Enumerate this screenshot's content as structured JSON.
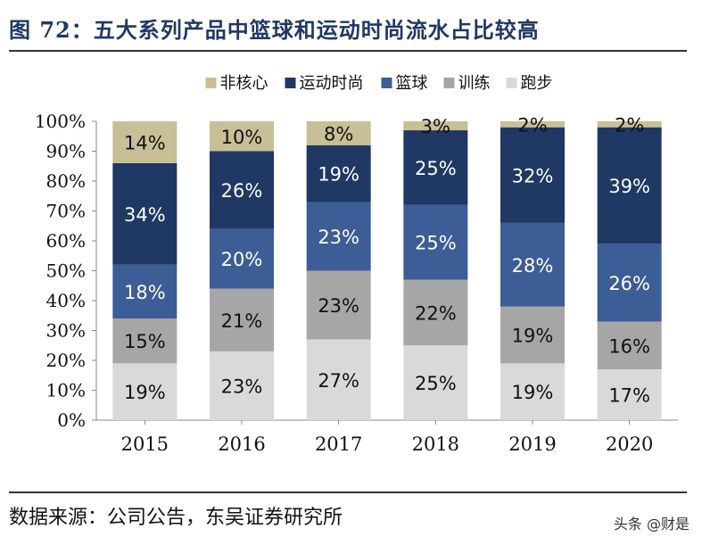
{
  "figure": {
    "title": "图 72：五大系列产品中篮球和运动时尚流水占比较高",
    "source": "数据来源：公司公告，东吴证券研究所",
    "watermark": "头条 @财是"
  },
  "chart_data": {
    "type": "bar",
    "stacked": true,
    "categories": [
      "2015",
      "2016",
      "2017",
      "2018",
      "2019",
      "2020"
    ],
    "ylim": [
      0,
      100
    ],
    "yticks": [
      "0%",
      "10%",
      "20%",
      "30%",
      "40%",
      "50%",
      "60%",
      "70%",
      "80%",
      "90%",
      "100%"
    ],
    "legend_position": "top",
    "series": [
      {
        "name": "跑步",
        "color": "#d9d9d9",
        "label_color": "#111111",
        "values": [
          19,
          23,
          27,
          25,
          19,
          17
        ],
        "labels": [
          "19%",
          "23%",
          "27%",
          "25%",
          "19%",
          "17%"
        ]
      },
      {
        "name": "训练",
        "color": "#a6a6a6",
        "label_color": "#111111",
        "values": [
          15,
          21,
          23,
          22,
          19,
          16
        ],
        "labels": [
          "15%",
          "21%",
          "23%",
          "22%",
          "19%",
          "16%"
        ]
      },
      {
        "name": "篮球",
        "color": "#3c5d96",
        "label_color": "#ffffff",
        "values": [
          18,
          20,
          23,
          25,
          28,
          26
        ],
        "labels": [
          "18%",
          "20%",
          "23%",
          "25%",
          "28%",
          "26%"
        ]
      },
      {
        "name": "运动时尚",
        "color": "#1f3864",
        "label_color": "#ffffff",
        "values": [
          34,
          26,
          19,
          25,
          32,
          39
        ],
        "labels": [
          "34%",
          "26%",
          "19%",
          "25%",
          "32%",
          "39%"
        ]
      },
      {
        "name": "非核心",
        "color": "#c8bf96",
        "label_color": "#111111",
        "values": [
          14,
          10,
          8,
          3,
          2,
          2
        ],
        "labels": [
          "14%",
          "10%",
          "8%",
          "3%",
          "2%",
          "2%"
        ]
      }
    ],
    "legend_order": [
      "非核心",
      "运动时尚",
      "篮球",
      "训练",
      "跑步"
    ]
  }
}
